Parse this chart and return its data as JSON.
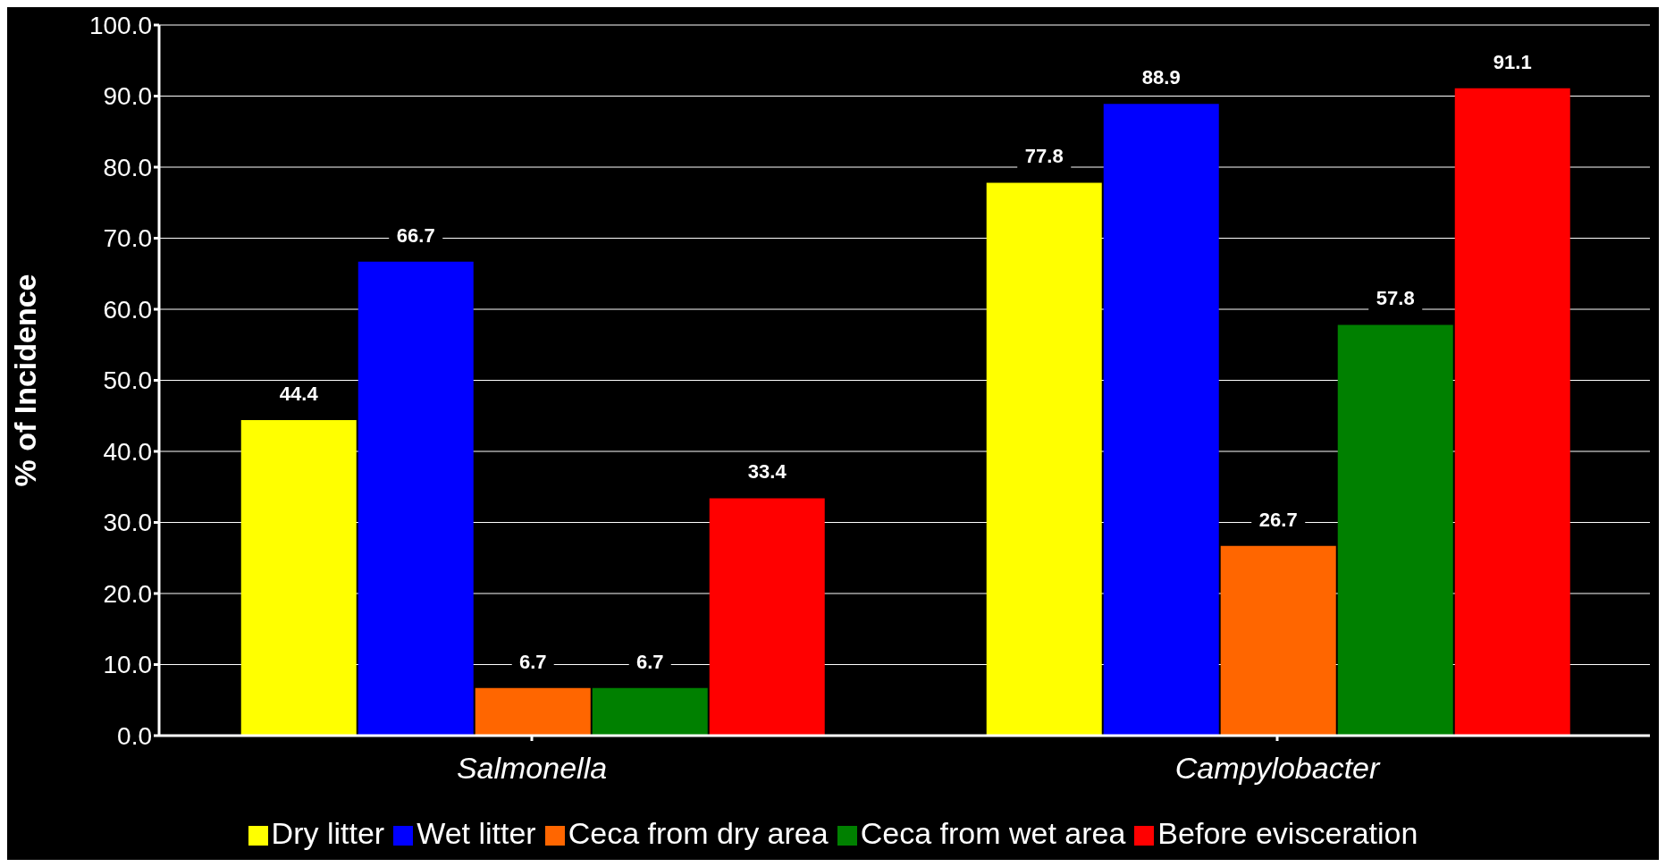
{
  "chart_data": {
    "type": "bar",
    "ylabel": "% of Incidence",
    "categories": [
      "Salmonella",
      "Campylobacter"
    ],
    "series": [
      {
        "name": "Dry litter",
        "color": "#ffff00",
        "values": [
          44.4,
          77.8
        ]
      },
      {
        "name": "Wet litter",
        "color": "#0000ff",
        "values": [
          66.7,
          88.9
        ]
      },
      {
        "name": "Ceca from dry area",
        "color": "#ff6600",
        "values": [
          6.7,
          26.7
        ]
      },
      {
        "name": "Ceca from wet area",
        "color": "#008000",
        "values": [
          6.7,
          57.8
        ]
      },
      {
        "name": "Before evisceration",
        "color": "#ff0000",
        "values": [
          33.4,
          91.1
        ]
      }
    ],
    "ylim": [
      0,
      100
    ],
    "yticks": [
      {
        "value": 0,
        "label": "0.0"
      },
      {
        "value": 10,
        "label": "10.0"
      },
      {
        "value": 20,
        "label": "20.0"
      },
      {
        "value": 30,
        "label": "30.0"
      },
      {
        "value": 40,
        "label": "40.0"
      },
      {
        "value": 50,
        "label": "50.0"
      },
      {
        "value": 60,
        "label": "60.0"
      },
      {
        "value": 70,
        "label": "70.0"
      },
      {
        "value": 80,
        "label": "80.0"
      },
      {
        "value": 90,
        "label": "90.0"
      },
      {
        "value": 100,
        "label": "100.0"
      }
    ],
    "grid": "y",
    "legend": "bottom",
    "data_labels": true
  }
}
